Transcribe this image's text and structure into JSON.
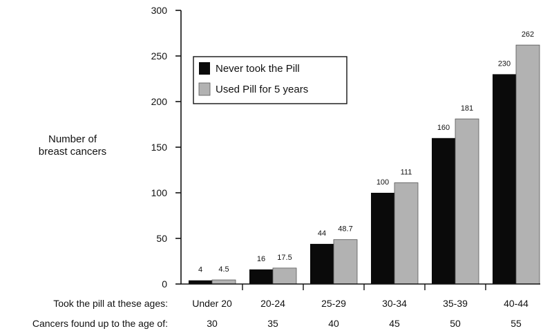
{
  "chart_data": {
    "type": "bar",
    "ylabel": [
      "Number of",
      "breast cancers"
    ],
    "ylim": [
      0,
      300
    ],
    "yticks": [
      0,
      50,
      100,
      150,
      200,
      250,
      300
    ],
    "grid": false,
    "legend_position": "top-left",
    "row_labels": {
      "ages_taken": "Took the pill at these ages:",
      "ages_found": "Cancers found up to the age of:"
    },
    "categories": [
      "Under 20",
      "20-24",
      "25-29",
      "30-34",
      "35-39",
      "40-44"
    ],
    "categories_secondary": [
      "30",
      "35",
      "40",
      "45",
      "50",
      "55"
    ],
    "series": [
      {
        "name": "Never took the Pill",
        "color": "#0a0a0a",
        "values": [
          4,
          16,
          44,
          100,
          160,
          230
        ],
        "labels": [
          "4",
          "16",
          "44",
          "100",
          "160",
          "230"
        ]
      },
      {
        "name": "Used Pill for 5 years",
        "color": "#b2b2b2",
        "values": [
          4.5,
          17.5,
          48.7,
          111,
          181,
          262
        ],
        "labels": [
          "4.5",
          "17.5",
          "48.7",
          "111",
          "181",
          "262"
        ]
      }
    ]
  }
}
